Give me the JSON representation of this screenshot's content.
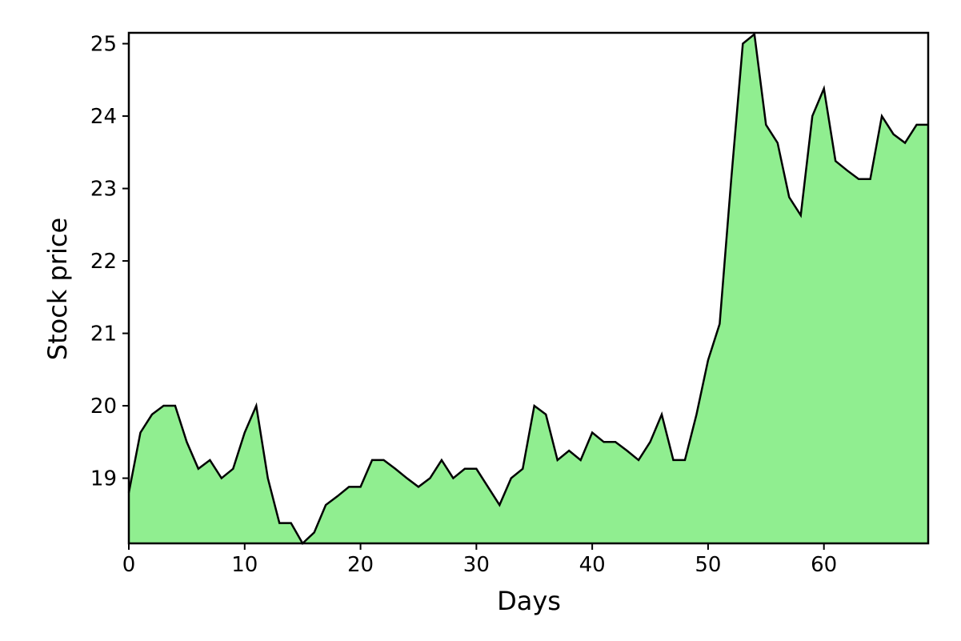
{
  "chart_data": {
    "type": "area",
    "title": "",
    "xlabel": "Days",
    "ylabel": "Stock price",
    "xlim": [
      0,
      69
    ],
    "ylim": [
      18.1,
      25.15
    ],
    "x_ticks": [
      0,
      10,
      20,
      30,
      40,
      50,
      60
    ],
    "y_ticks": [
      19,
      20,
      21,
      22,
      23,
      24,
      25
    ],
    "grid": false,
    "series": [
      {
        "name": "Stock price",
        "fill_color": "#90ee90",
        "line_color": "#000000",
        "x": [
          0,
          1,
          2,
          3,
          4,
          5,
          6,
          7,
          8,
          9,
          10,
          11,
          12,
          13,
          14,
          15,
          16,
          17,
          18,
          19,
          20,
          21,
          22,
          23,
          24,
          25,
          26,
          27,
          28,
          29,
          30,
          31,
          32,
          33,
          34,
          35,
          36,
          37,
          38,
          39,
          40,
          41,
          42,
          43,
          44,
          45,
          46,
          47,
          48,
          49,
          50,
          51,
          52,
          53,
          54,
          55,
          56,
          57,
          58,
          59,
          60,
          61,
          62,
          63,
          64,
          65,
          66,
          67,
          68,
          69
        ],
        "values": [
          18.8,
          19.63,
          19.88,
          20.0,
          20.0,
          19.5,
          19.13,
          19.25,
          19.0,
          19.13,
          19.63,
          20.0,
          19.0,
          18.38,
          18.38,
          18.1,
          18.25,
          18.63,
          18.75,
          18.88,
          18.88,
          19.25,
          19.25,
          19.13,
          19.0,
          18.88,
          19.0,
          19.25,
          19.0,
          19.13,
          19.13,
          18.88,
          18.63,
          19.0,
          19.13,
          20.0,
          19.88,
          19.25,
          19.38,
          19.25,
          19.63,
          19.5,
          19.5,
          19.38,
          19.25,
          19.5,
          19.88,
          19.25,
          19.25,
          19.88,
          20.63,
          21.13,
          23.13,
          25.0,
          25.13,
          23.88,
          23.63,
          22.88,
          22.63,
          24.0,
          24.38,
          23.38,
          23.25,
          23.13,
          23.13,
          24.0,
          23.75,
          23.63,
          23.88,
          23.88
        ]
      }
    ]
  }
}
